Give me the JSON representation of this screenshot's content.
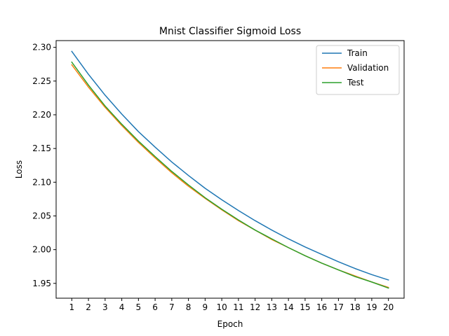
{
  "chart_data": {
    "type": "line",
    "title": "Mnist Classifier Sigmoid Loss",
    "xlabel": "Epoch",
    "ylabel": "Loss",
    "x": [
      1,
      2,
      3,
      4,
      5,
      6,
      7,
      8,
      9,
      10,
      11,
      12,
      13,
      14,
      15,
      16,
      17,
      18,
      19,
      20
    ],
    "xticks": [
      "1",
      "2",
      "3",
      "4",
      "5",
      "6",
      "7",
      "8",
      "9",
      "10",
      "11",
      "12",
      "13",
      "14",
      "15",
      "16",
      "17",
      "18",
      "19",
      "20"
    ],
    "yticks": [
      "1.95",
      "2.00",
      "2.05",
      "2.10",
      "2.15",
      "2.20",
      "2.25",
      "2.30"
    ],
    "ylim": [
      1.928,
      2.31
    ],
    "xlim": [
      0.06,
      20.94
    ],
    "grid": false,
    "legend_position": "top-right",
    "series": [
      {
        "name": "Train",
        "color": "#1f77b4",
        "values": [
          2.294,
          2.26,
          2.229,
          2.201,
          2.175,
          2.152,
          2.13,
          2.11,
          2.091,
          2.074,
          2.058,
          2.043,
          2.029,
          2.016,
          2.004,
          1.993,
          1.982,
          1.972,
          1.963,
          1.955
        ]
      },
      {
        "name": "Validation",
        "color": "#ff7f0e",
        "values": [
          2.274,
          2.241,
          2.211,
          2.184,
          2.159,
          2.136,
          2.114,
          2.094,
          2.076,
          2.059,
          2.043,
          2.029,
          2.015,
          2.003,
          1.991,
          1.98,
          1.97,
          1.961,
          1.952,
          1.944
        ]
      },
      {
        "name": "Test",
        "color": "#2ca02c",
        "values": [
          2.278,
          2.244,
          2.213,
          2.186,
          2.161,
          2.138,
          2.116,
          2.096,
          2.077,
          2.06,
          2.044,
          2.029,
          2.016,
          2.003,
          1.991,
          1.98,
          1.97,
          1.96,
          1.952,
          1.943
        ]
      }
    ]
  }
}
